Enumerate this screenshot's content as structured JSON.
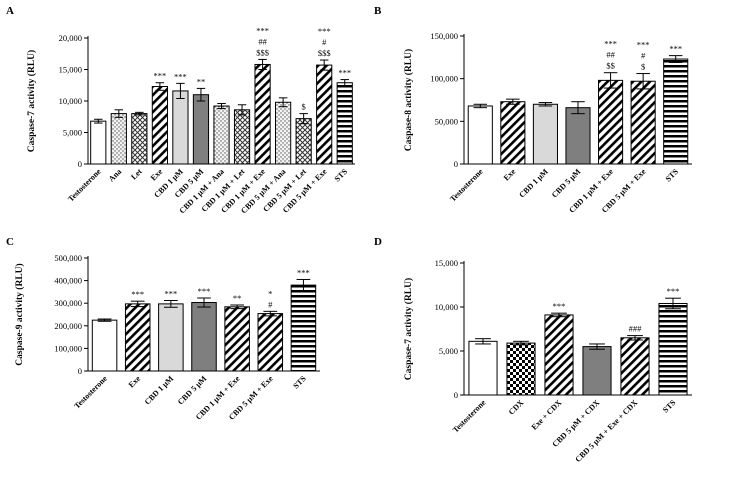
{
  "colors": {
    "axis": "#000000",
    "bar_stroke": "#000000",
    "light_gray": "#d9d9d9",
    "dark_gray": "#7f7f7f",
    "mid_gray": "#bfbfbf"
  },
  "chart_data": [
    {
      "panel": "A",
      "type": "bar",
      "ylabel": "Caspase-7 activity (RLU)",
      "ylim": [
        0,
        20000
      ],
      "yticks": [
        0,
        5000,
        10000,
        15000,
        20000
      ],
      "ytick_labels": [
        "0",
        "5,000",
        "10,000",
        "15,000",
        "20,000"
      ],
      "categories": [
        "Testosterone",
        "Ana",
        "Let",
        "Exe",
        "CBD 1 μM",
        "CBD 5 μM",
        "CBD 1 μM + Ana",
        "CBD 1 μM + Let",
        "CBD 1 μM + Exe",
        "CBD 5 μM + Ana",
        "CBD 5 μM + Let",
        "CBD 5 μM + Exe",
        "STS"
      ],
      "values": [
        6800,
        8000,
        8000,
        12300,
        11600,
        11000,
        9200,
        8600,
        15800,
        9800,
        7200,
        15700,
        12900
      ],
      "errors": [
        300,
        600,
        200,
        600,
        1200,
        1000,
        400,
        800,
        800,
        700,
        800,
        800,
        500
      ],
      "patterns": [
        "white",
        "dots",
        "cross",
        "diag",
        "light",
        "dark",
        "dots",
        "cross",
        "diag",
        "dots",
        "cross",
        "diag",
        "hstripe"
      ],
      "annotations": [
        [
          "",
          "",
          ""
        ],
        [
          "",
          "",
          ""
        ],
        [
          "",
          "",
          ""
        ],
        [
          "***",
          "",
          ""
        ],
        [
          "***",
          "",
          ""
        ],
        [
          "**",
          "",
          ""
        ],
        [
          "",
          "",
          ""
        ],
        [
          "",
          "",
          ""
        ],
        [
          "***",
          "##",
          "$$$"
        ],
        [
          "",
          "",
          ""
        ],
        [
          "$",
          "",
          ""
        ],
        [
          "***",
          "#",
          "$$$"
        ],
        [
          "***",
          "",
          ""
        ]
      ]
    },
    {
      "panel": "B",
      "type": "bar",
      "ylabel": "Caspase-8 activity (RLU)",
      "ylim": [
        0,
        150000
      ],
      "yticks": [
        0,
        50000,
        100000,
        150000
      ],
      "ytick_labels": [
        "0",
        "50,000",
        "100,000",
        "150,000"
      ],
      "categories": [
        "Testosterone",
        "Exe",
        "CBD 1 μM",
        "CBD 5 μM",
        "CBD 1 μM + Exe",
        "CBD 5 μM + Exe",
        "STS"
      ],
      "values": [
        68000,
        73000,
        70000,
        66000,
        98000,
        97000,
        123000
      ],
      "errors": [
        2000,
        3000,
        2000,
        7000,
        9000,
        9000,
        4000
      ],
      "patterns": [
        "white",
        "diag",
        "light",
        "dark",
        "diag",
        "diag",
        "hstripe"
      ],
      "annotations": [
        [
          "",
          "",
          ""
        ],
        [
          "",
          "",
          ""
        ],
        [
          "",
          "",
          ""
        ],
        [
          "",
          "",
          ""
        ],
        [
          "***",
          "##",
          "$$"
        ],
        [
          "***",
          "#",
          "$"
        ],
        [
          "***",
          "",
          ""
        ]
      ]
    },
    {
      "panel": "C",
      "type": "bar",
      "ylabel": "Caspase-9 activity (RLU)",
      "ylim": [
        0,
        500000
      ],
      "yticks": [
        0,
        100000,
        200000,
        300000,
        400000,
        500000
      ],
      "ytick_labels": [
        "0",
        "100,000",
        "200,000",
        "300,000",
        "400,000",
        "500,000"
      ],
      "categories": [
        "Testosterone",
        "Exe",
        "CBD 1 μM",
        "CBD 5 μM",
        "CBD 1 μM + Exe",
        "CBD 5 μM + Exe",
        "STS"
      ],
      "values": [
        225000,
        297000,
        297000,
        303000,
        284000,
        254000,
        380000
      ],
      "errors": [
        5000,
        12000,
        15000,
        20000,
        8000,
        10000,
        25000
      ],
      "patterns": [
        "white",
        "diag",
        "light",
        "dark",
        "diag",
        "diag",
        "hstripe"
      ],
      "annotations": [
        [
          "",
          "",
          ""
        ],
        [
          "***",
          "",
          ""
        ],
        [
          "***",
          "",
          ""
        ],
        [
          "***",
          "",
          ""
        ],
        [
          "**",
          "",
          ""
        ],
        [
          "*",
          "#",
          ""
        ],
        [
          "***",
          "",
          ""
        ]
      ]
    },
    {
      "panel": "D",
      "type": "bar",
      "ylabel": "Caspase-7 activity (RLU)",
      "ylim": [
        0,
        15000
      ],
      "yticks": [
        0,
        5000,
        10000,
        15000
      ],
      "ytick_labels": [
        "0",
        "5,000",
        "10,000",
        "15,000"
      ],
      "categories": [
        "Testosterone",
        "CDX",
        "Exe + CDX",
        "CBD 5 μM + CDX",
        "CBD 5 μM + Exe + CDX",
        "STS"
      ],
      "values": [
        6100,
        5900,
        9100,
        5500,
        6500,
        10400
      ],
      "errors": [
        300,
        200,
        200,
        300,
        250,
        600
      ],
      "patterns": [
        "white",
        "checker",
        "diag",
        "dark",
        "diag",
        "hstripe"
      ],
      "annotations": [
        [
          "",
          "",
          ""
        ],
        [
          "",
          "",
          ""
        ],
        [
          "***",
          "",
          ""
        ],
        [
          "",
          "",
          ""
        ],
        [
          "###",
          "",
          ""
        ],
        [
          "***",
          "",
          ""
        ]
      ]
    }
  ]
}
